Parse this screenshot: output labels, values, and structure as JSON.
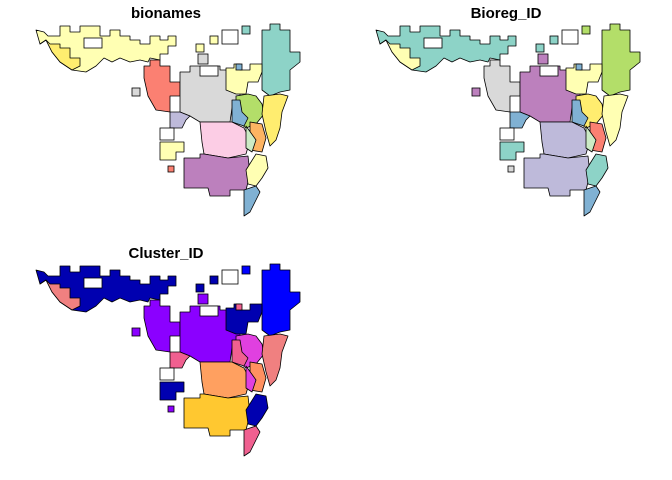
{
  "panels": [
    {
      "title": "bionames",
      "colors": {
        "lightyellow": "#ffffb3",
        "lightyellow2": "#ffffb3",
        "yellow": "#ffed6f",
        "teal": "#8dd3c7",
        "salmon": "#fb8072",
        "grey": "#d9d9d9",
        "green": "#b3de69",
        "blue": "#80b1d3",
        "pink": "#fccde5",
        "purple": "#bc80bd",
        "lavender": "#bebada",
        "orange": "#fdb462",
        "mint": "#ccebc5"
      }
    },
    {
      "title": "Bioreg_ID",
      "colors": {
        "lightyellow": "#8dd3c7",
        "lightyellow2": "#ffffb3",
        "yellow": "#ffffb3",
        "teal": "#b3de69",
        "salmon": "#d9d9d9",
        "grey": "#bc80bd",
        "green": "#ffed6f",
        "blue": "#80b1d3",
        "pink": "#bebada",
        "purple": "#bebada",
        "lavender": "#80b1d3",
        "orange": "#fb8072",
        "mint": "#ccebc5"
      }
    },
    {
      "title": "Cluster_ID",
      "colors": {
        "lightyellow": "#0000b0",
        "lightyellow2": "#0000b0",
        "yellow": "#f08080",
        "teal": "#0000ff",
        "salmon": "#8b00ff",
        "grey": "#8b00ff",
        "green": "#e040e0",
        "blue": "#f06090",
        "pink": "#ffa060",
        "purple": "#ffc830",
        "lavender": "#f06090",
        "orange": "#ff9060",
        "mint": "#e040e0"
      }
    }
  ]
}
